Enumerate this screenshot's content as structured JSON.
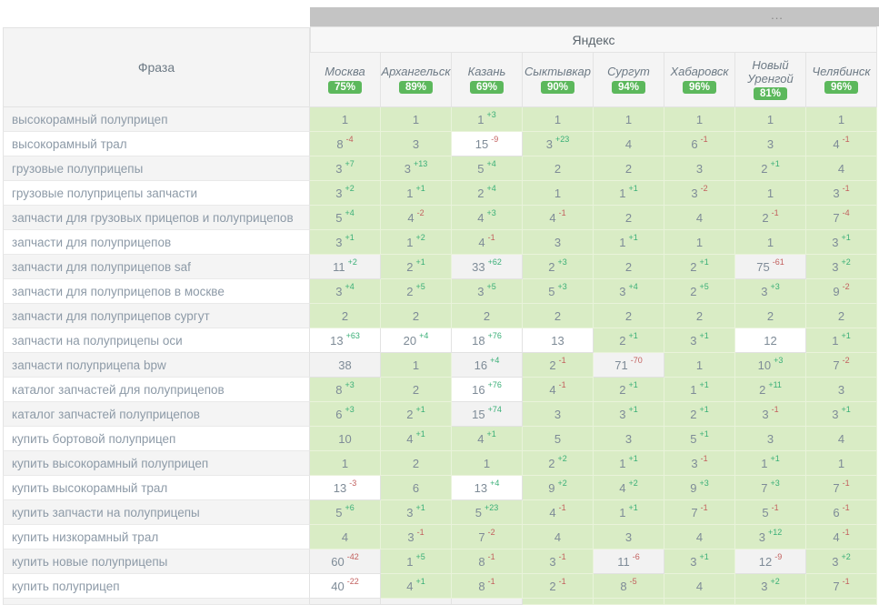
{
  "toolbar": {
    "dots_label": "..."
  },
  "header": {
    "engine": "Яндекс",
    "phrase_column": "Фраза",
    "cities": [
      {
        "name": "Москва",
        "visibility": "75%"
      },
      {
        "name": "Архангельск",
        "visibility": "89%"
      },
      {
        "name": "Казань",
        "visibility": "69%"
      },
      {
        "name": "Сыктывкар",
        "visibility": "90%"
      },
      {
        "name": "Сургут",
        "visibility": "94%"
      },
      {
        "name": "Хабаровск",
        "visibility": "96%"
      },
      {
        "name": "Новый Уренгой",
        "visibility": "81%"
      },
      {
        "name": "Челябинск",
        "visibility": "96%"
      }
    ]
  },
  "colors": {
    "badge_green": "#5cb85c",
    "cell_green": "#d9ecc5",
    "change_up": "#3aaf77",
    "change_down": "#c2605e",
    "toolbar_gray": "#c4c4c4"
  },
  "rows": [
    {
      "phrase": "высокорамный полуприцеп",
      "cells": [
        [
          "1",
          "",
          "g"
        ],
        [
          "1",
          "",
          "g"
        ],
        [
          "1",
          "+3",
          "g"
        ],
        [
          "1",
          "",
          "g"
        ],
        [
          "1",
          "",
          "g"
        ],
        [
          "1",
          "",
          "g"
        ],
        [
          "1",
          "",
          "g"
        ],
        [
          "1",
          "",
          "g"
        ]
      ]
    },
    {
      "phrase": "высокорамный трал",
      "cells": [
        [
          "8",
          "-4",
          "g"
        ],
        [
          "3",
          "",
          "g"
        ],
        [
          "15",
          "-9",
          "w"
        ],
        [
          "3",
          "+23",
          "g"
        ],
        [
          "4",
          "",
          "g"
        ],
        [
          "6",
          "-1",
          "g"
        ],
        [
          "3",
          "",
          "g"
        ],
        [
          "4",
          "-1",
          "g"
        ]
      ]
    },
    {
      "phrase": "грузовые полуприцепы",
      "cells": [
        [
          "3",
          "+7",
          "g"
        ],
        [
          "3",
          "+13",
          "g"
        ],
        [
          "5",
          "+4",
          "g"
        ],
        [
          "2",
          "",
          "g"
        ],
        [
          "2",
          "",
          "g"
        ],
        [
          "3",
          "",
          "g"
        ],
        [
          "2",
          "+1",
          "g"
        ],
        [
          "4",
          "",
          "g"
        ]
      ]
    },
    {
      "phrase": "грузовые полуприцепы запчасти",
      "cells": [
        [
          "3",
          "+2",
          "g"
        ],
        [
          "1",
          "+1",
          "g"
        ],
        [
          "2",
          "+4",
          "g"
        ],
        [
          "1",
          "",
          "g"
        ],
        [
          "1",
          "+1",
          "g"
        ],
        [
          "3",
          "-2",
          "g"
        ],
        [
          "1",
          "",
          "g"
        ],
        [
          "3",
          "-1",
          "g"
        ]
      ]
    },
    {
      "phrase": "запчасти для грузовых прицепов и полуприцепов",
      "cells": [
        [
          "5",
          "+4",
          "g"
        ],
        [
          "4",
          "-2",
          "g"
        ],
        [
          "4",
          "+3",
          "g"
        ],
        [
          "4",
          "-1",
          "g"
        ],
        [
          "2",
          "",
          "g"
        ],
        [
          "4",
          "",
          "g"
        ],
        [
          "2",
          "-1",
          "g"
        ],
        [
          "7",
          "-4",
          "g"
        ]
      ]
    },
    {
      "phrase": "запчасти для полуприцепов",
      "cells": [
        [
          "3",
          "+1",
          "g"
        ],
        [
          "1",
          "+2",
          "g"
        ],
        [
          "4",
          "-1",
          "g"
        ],
        [
          "3",
          "",
          "g"
        ],
        [
          "1",
          "+1",
          "g"
        ],
        [
          "1",
          "",
          "g"
        ],
        [
          "1",
          "",
          "g"
        ],
        [
          "3",
          "+1",
          "g"
        ]
      ]
    },
    {
      "phrase": "запчасти для полуприцепов saf",
      "cells": [
        [
          "11",
          "+2",
          "w"
        ],
        [
          "2",
          "+1",
          "g"
        ],
        [
          "33",
          "+62",
          "w"
        ],
        [
          "2",
          "+3",
          "g"
        ],
        [
          "2",
          "",
          "g"
        ],
        [
          "2",
          "+1",
          "g"
        ],
        [
          "75",
          "-61",
          "w"
        ],
        [
          "3",
          "+2",
          "g"
        ]
      ]
    },
    {
      "phrase": "запчасти для полуприцепов в москве",
      "cells": [
        [
          "3",
          "+4",
          "g"
        ],
        [
          "2",
          "+5",
          "g"
        ],
        [
          "3",
          "+5",
          "g"
        ],
        [
          "5",
          "+3",
          "g"
        ],
        [
          "3",
          "+4",
          "g"
        ],
        [
          "2",
          "+5",
          "g"
        ],
        [
          "3",
          "+3",
          "g"
        ],
        [
          "9",
          "-2",
          "g"
        ]
      ]
    },
    {
      "phrase": "запчасти для полуприцепов сургут",
      "cells": [
        [
          "2",
          "",
          "g"
        ],
        [
          "2",
          "",
          "g"
        ],
        [
          "2",
          "",
          "g"
        ],
        [
          "2",
          "",
          "g"
        ],
        [
          "2",
          "",
          "g"
        ],
        [
          "2",
          "",
          "g"
        ],
        [
          "2",
          "",
          "g"
        ],
        [
          "2",
          "",
          "g"
        ]
      ]
    },
    {
      "phrase": "запчасти на полуприцепы оси",
      "cells": [
        [
          "13",
          "+63",
          "w"
        ],
        [
          "20",
          "+4",
          "w"
        ],
        [
          "18",
          "+76",
          "w"
        ],
        [
          "13",
          "",
          "w"
        ],
        [
          "2",
          "+1",
          "g"
        ],
        [
          "3",
          "+1",
          "g"
        ],
        [
          "12",
          "",
          "w"
        ],
        [
          "1",
          "+1",
          "g"
        ]
      ]
    },
    {
      "phrase": "запчасти полуприцепа bpw",
      "cells": [
        [
          "38",
          "",
          "w"
        ],
        [
          "1",
          "",
          "g"
        ],
        [
          "16",
          "+4",
          "w"
        ],
        [
          "2",
          "-1",
          "g"
        ],
        [
          "71",
          "-70",
          "w"
        ],
        [
          "1",
          "",
          "g"
        ],
        [
          "10",
          "+3",
          "g"
        ],
        [
          "7",
          "-2",
          "g"
        ]
      ]
    },
    {
      "phrase": "каталог запчастей для полуприцепов",
      "cells": [
        [
          "8",
          "+3",
          "g"
        ],
        [
          "2",
          "",
          "g"
        ],
        [
          "16",
          "+76",
          "w"
        ],
        [
          "4",
          "-1",
          "g"
        ],
        [
          "2",
          "+1",
          "g"
        ],
        [
          "1",
          "+1",
          "g"
        ],
        [
          "2",
          "+11",
          "g"
        ],
        [
          "3",
          "",
          "g"
        ]
      ]
    },
    {
      "phrase": "каталог запчастей полуприцепов",
      "cells": [
        [
          "6",
          "+3",
          "g"
        ],
        [
          "2",
          "+1",
          "g"
        ],
        [
          "15",
          "+74",
          "w"
        ],
        [
          "3",
          "",
          "g"
        ],
        [
          "3",
          "+1",
          "g"
        ],
        [
          "2",
          "+1",
          "g"
        ],
        [
          "3",
          "-1",
          "g"
        ],
        [
          "3",
          "+1",
          "g"
        ]
      ]
    },
    {
      "phrase": "купить бортовой полуприцеп",
      "cells": [
        [
          "10",
          "",
          "g"
        ],
        [
          "4",
          "+1",
          "g"
        ],
        [
          "4",
          "+1",
          "g"
        ],
        [
          "5",
          "",
          "g"
        ],
        [
          "3",
          "",
          "g"
        ],
        [
          "5",
          "+1",
          "g"
        ],
        [
          "3",
          "",
          "g"
        ],
        [
          "4",
          "",
          "g"
        ]
      ]
    },
    {
      "phrase": "купить высокорамный полуприцеп",
      "cells": [
        [
          "1",
          "",
          "g"
        ],
        [
          "2",
          "",
          "g"
        ],
        [
          "1",
          "",
          "g"
        ],
        [
          "2",
          "+2",
          "g"
        ],
        [
          "1",
          "+1",
          "g"
        ],
        [
          "3",
          "-1",
          "g"
        ],
        [
          "1",
          "+1",
          "g"
        ],
        [
          "1",
          "",
          "g"
        ]
      ]
    },
    {
      "phrase": "купить высокорамный трал",
      "cells": [
        [
          "13",
          "-3",
          "w"
        ],
        [
          "6",
          "",
          "g"
        ],
        [
          "13",
          "+4",
          "w"
        ],
        [
          "9",
          "+2",
          "g"
        ],
        [
          "4",
          "+2",
          "g"
        ],
        [
          "9",
          "+3",
          "g"
        ],
        [
          "7",
          "+3",
          "g"
        ],
        [
          "7",
          "-1",
          "g"
        ]
      ]
    },
    {
      "phrase": "купить запчасти на полуприцепы",
      "cells": [
        [
          "5",
          "+6",
          "g"
        ],
        [
          "3",
          "+1",
          "g"
        ],
        [
          "5",
          "+23",
          "g"
        ],
        [
          "4",
          "-1",
          "g"
        ],
        [
          "1",
          "+1",
          "g"
        ],
        [
          "7",
          "-1",
          "g"
        ],
        [
          "5",
          "-1",
          "g"
        ],
        [
          "6",
          "-1",
          "g"
        ]
      ]
    },
    {
      "phrase": "купить низкорамный трал",
      "cells": [
        [
          "4",
          "",
          "g"
        ],
        [
          "3",
          "-1",
          "g"
        ],
        [
          "7",
          "-2",
          "g"
        ],
        [
          "4",
          "",
          "g"
        ],
        [
          "3",
          "",
          "g"
        ],
        [
          "4",
          "",
          "g"
        ],
        [
          "3",
          "+12",
          "g"
        ],
        [
          "4",
          "-1",
          "g"
        ]
      ]
    },
    {
      "phrase": "купить новые полуприцепы",
      "cells": [
        [
          "60",
          "-42",
          "w"
        ],
        [
          "1",
          "+5",
          "g"
        ],
        [
          "8",
          "-1",
          "g"
        ],
        [
          "3",
          "-1",
          "g"
        ],
        [
          "11",
          "-6",
          "w"
        ],
        [
          "3",
          "+1",
          "g"
        ],
        [
          "12",
          "-9",
          "w"
        ],
        [
          "3",
          "+2",
          "g"
        ]
      ]
    },
    {
      "phrase": "купить полуприцеп",
      "cells": [
        [
          "40",
          "-22",
          "w"
        ],
        [
          "4",
          "+1",
          "g"
        ],
        [
          "8",
          "-1",
          "g"
        ],
        [
          "2",
          "-1",
          "g"
        ],
        [
          "8",
          "-5",
          "g"
        ],
        [
          "4",
          "",
          "g"
        ],
        [
          "3",
          "+2",
          "g"
        ],
        [
          "7",
          "-1",
          "g"
        ]
      ]
    }
  ],
  "partial_row_bgs": [
    "w",
    "w",
    "w",
    "g",
    "g",
    "g",
    "g",
    "g"
  ]
}
